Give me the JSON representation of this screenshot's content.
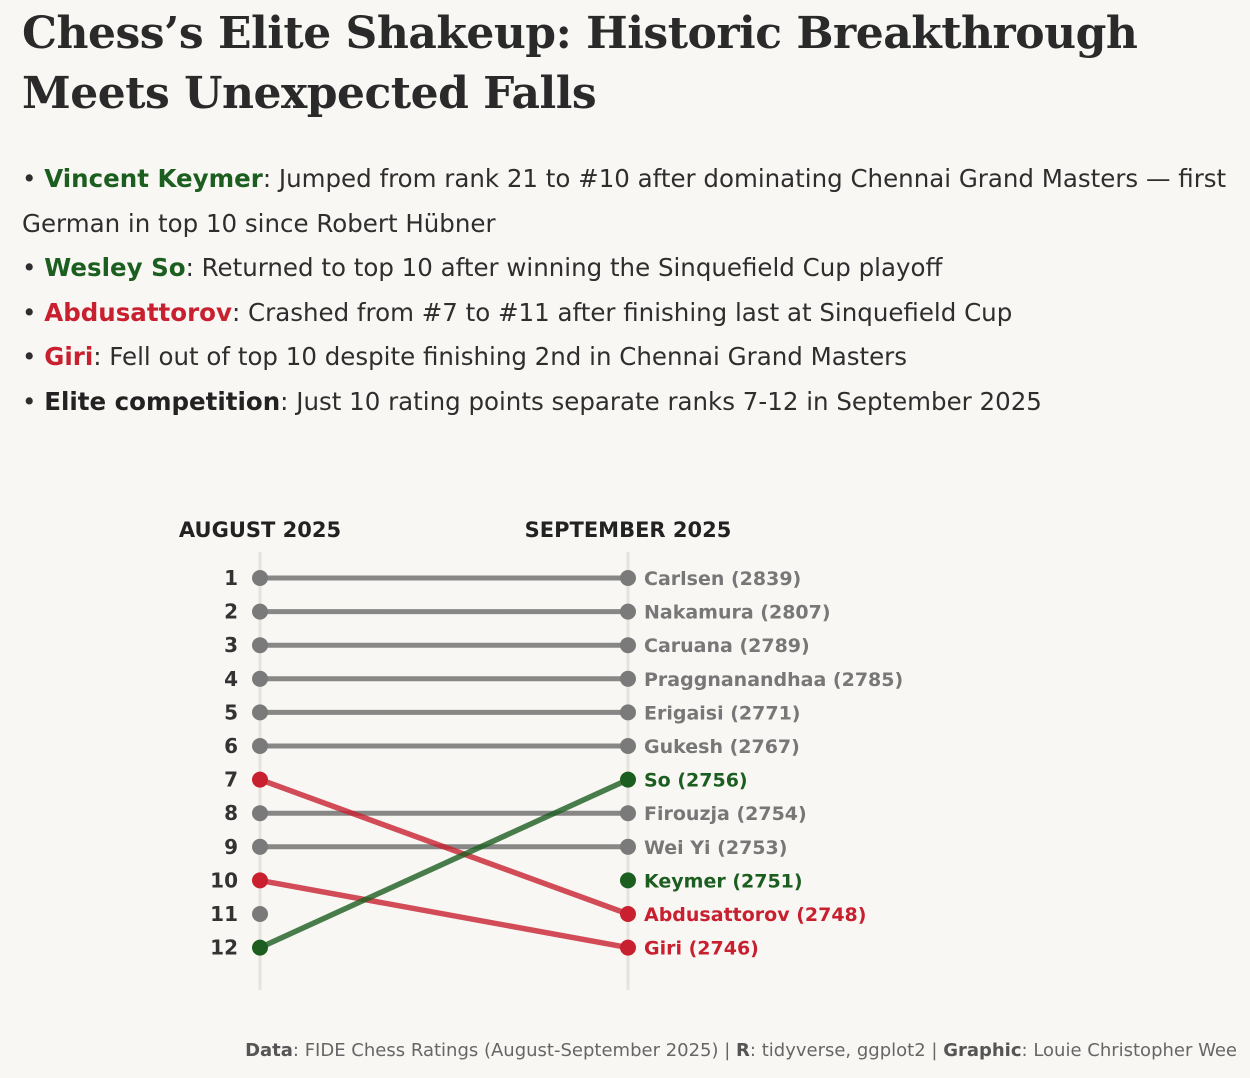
{
  "title": "Chess’s Elite Shakeup: Historic Breakthrough Meets Unexpected Falls",
  "bullets": [
    {
      "name": "Vincent Keymer",
      "color": "green",
      "text": ": Jumped from rank 21 to #10 after dominating Chennai Grand Masters — first German in top 10 since Robert Hübner"
    },
    {
      "name": "Wesley So",
      "color": "green",
      "text": ": Returned to top 10 after winning the Sinquefield Cup playoff"
    },
    {
      "name": "Abdusattorov",
      "color": "red",
      "text": ": Crashed from #7 to #11 after finishing last at Sinquefield Cup"
    },
    {
      "name": "Giri",
      "color": "red",
      "text": ": Fell out of top 10 despite finishing 2nd in Chennai Grand Masters"
    },
    {
      "name": "Elite competition",
      "color": "dark",
      "text": ": Just 10 rating points separate ranks 7-12 in September 2025"
    }
  ],
  "chart_data": {
    "type": "slope",
    "left_header": "AUGUST 2025",
    "right_header": "SEPTEMBER 2025",
    "ranks": [
      "1",
      "2",
      "3",
      "4",
      "5",
      "6",
      "7",
      "8",
      "9",
      "10",
      "11",
      "12"
    ],
    "rank_range": [
      1,
      12
    ],
    "colors": {
      "neutral": "#7a7a7a",
      "rise": "#1b5e20",
      "fall": "#c8202f"
    },
    "lines": [
      {
        "from": 1,
        "to": 1,
        "status": "neutral"
      },
      {
        "from": 2,
        "to": 2,
        "status": "neutral"
      },
      {
        "from": 3,
        "to": 3,
        "status": "neutral"
      },
      {
        "from": 4,
        "to": 4,
        "status": "neutral"
      },
      {
        "from": 5,
        "to": 5,
        "status": "neutral"
      },
      {
        "from": 6,
        "to": 6,
        "status": "neutral"
      },
      {
        "from": 7,
        "to": 11,
        "status": "fall"
      },
      {
        "from": 8,
        "to": 8,
        "status": "neutral"
      },
      {
        "from": 9,
        "to": 9,
        "status": "neutral"
      },
      {
        "from": 10,
        "to": 12,
        "status": "fall"
      },
      {
        "from": 12,
        "to": 7,
        "status": "rise"
      }
    ],
    "left_points": [
      {
        "rank": 1,
        "status": "neutral"
      },
      {
        "rank": 2,
        "status": "neutral"
      },
      {
        "rank": 3,
        "status": "neutral"
      },
      {
        "rank": 4,
        "status": "neutral"
      },
      {
        "rank": 5,
        "status": "neutral"
      },
      {
        "rank": 6,
        "status": "neutral"
      },
      {
        "rank": 7,
        "status": "fall"
      },
      {
        "rank": 8,
        "status": "neutral"
      },
      {
        "rank": 9,
        "status": "neutral"
      },
      {
        "rank": 10,
        "status": "fall"
      },
      {
        "rank": 11,
        "status": "neutral"
      },
      {
        "rank": 12,
        "status": "rise"
      }
    ],
    "right_points": [
      {
        "rank": 1,
        "label": "Carlsen (2839)",
        "status": "neutral"
      },
      {
        "rank": 2,
        "label": "Nakamura (2807)",
        "status": "neutral"
      },
      {
        "rank": 3,
        "label": "Caruana (2789)",
        "status": "neutral"
      },
      {
        "rank": 4,
        "label": "Praggnanandhaa (2785)",
        "status": "neutral"
      },
      {
        "rank": 5,
        "label": "Erigaisi (2771)",
        "status": "neutral"
      },
      {
        "rank": 6,
        "label": "Gukesh (2767)",
        "status": "neutral"
      },
      {
        "rank": 7,
        "label": "So (2756)",
        "status": "rise"
      },
      {
        "rank": 8,
        "label": "Firouzja (2754)",
        "status": "neutral"
      },
      {
        "rank": 9,
        "label": "Wei Yi (2753)",
        "status": "neutral"
      },
      {
        "rank": 10,
        "label": "Keymer (2751)",
        "status": "rise"
      },
      {
        "rank": 11,
        "label": "Abdusattorov (2748)",
        "status": "fall"
      },
      {
        "rank": 12,
        "label": "Giri (2746)",
        "status": "fall"
      }
    ]
  },
  "caption": {
    "data_label": "Data",
    "data_text": ": FIDE Chess Ratings (August-September 2025) | ",
    "r_label": "R",
    "r_text": ": tidyverse, ggplot2 | ",
    "graphic_label": "Graphic",
    "graphic_text": ": Louie Christopher Wee"
  }
}
